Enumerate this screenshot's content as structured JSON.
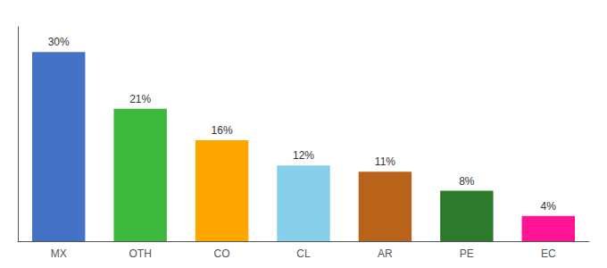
{
  "chart_data": {
    "type": "bar",
    "categories": [
      "MX",
      "OTH",
      "CO",
      "CL",
      "AR",
      "PE",
      "EC"
    ],
    "values": [
      30,
      21,
      16,
      12,
      11,
      8,
      4
    ],
    "value_labels": [
      "30%",
      "21%",
      "16%",
      "12%",
      "11%",
      "8%",
      "4%"
    ],
    "colors": [
      "#4472C4",
      "#3CB83C",
      "#FFA500",
      "#87CEEB",
      "#B8621A",
      "#2D7A2D",
      "#FF1493"
    ],
    "ylim": [
      0,
      34
    ],
    "grid": false,
    "data_labels": true,
    "tick_labels": "x"
  }
}
